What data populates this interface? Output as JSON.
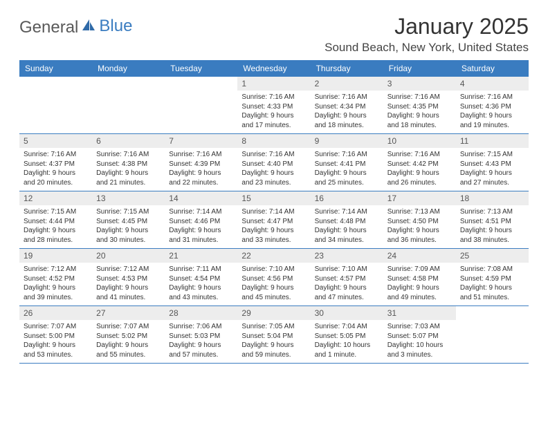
{
  "colors": {
    "header_bg": "#3a7cc0",
    "header_text": "#ffffff",
    "daynum_bg": "#ededed",
    "border": "#3a7cc0",
    "page_bg": "#ffffff",
    "logo_gray": "#595959",
    "logo_blue": "#3a7cc0"
  },
  "brand": {
    "part1": "General",
    "part2": "Blue"
  },
  "title": "January 2025",
  "location": "Sound Beach, New York, United States",
  "weekdays": [
    "Sunday",
    "Monday",
    "Tuesday",
    "Wednesday",
    "Thursday",
    "Friday",
    "Saturday"
  ],
  "weeks": [
    [
      {
        "n": "",
        "sr": "",
        "ss": "",
        "dl": ""
      },
      {
        "n": "",
        "sr": "",
        "ss": "",
        "dl": ""
      },
      {
        "n": "",
        "sr": "",
        "ss": "",
        "dl": ""
      },
      {
        "n": "1",
        "sr": "Sunrise: 7:16 AM",
        "ss": "Sunset: 4:33 PM",
        "dl": "Daylight: 9 hours and 17 minutes."
      },
      {
        "n": "2",
        "sr": "Sunrise: 7:16 AM",
        "ss": "Sunset: 4:34 PM",
        "dl": "Daylight: 9 hours and 18 minutes."
      },
      {
        "n": "3",
        "sr": "Sunrise: 7:16 AM",
        "ss": "Sunset: 4:35 PM",
        "dl": "Daylight: 9 hours and 18 minutes."
      },
      {
        "n": "4",
        "sr": "Sunrise: 7:16 AM",
        "ss": "Sunset: 4:36 PM",
        "dl": "Daylight: 9 hours and 19 minutes."
      }
    ],
    [
      {
        "n": "5",
        "sr": "Sunrise: 7:16 AM",
        "ss": "Sunset: 4:37 PM",
        "dl": "Daylight: 9 hours and 20 minutes."
      },
      {
        "n": "6",
        "sr": "Sunrise: 7:16 AM",
        "ss": "Sunset: 4:38 PM",
        "dl": "Daylight: 9 hours and 21 minutes."
      },
      {
        "n": "7",
        "sr": "Sunrise: 7:16 AM",
        "ss": "Sunset: 4:39 PM",
        "dl": "Daylight: 9 hours and 22 minutes."
      },
      {
        "n": "8",
        "sr": "Sunrise: 7:16 AM",
        "ss": "Sunset: 4:40 PM",
        "dl": "Daylight: 9 hours and 23 minutes."
      },
      {
        "n": "9",
        "sr": "Sunrise: 7:16 AM",
        "ss": "Sunset: 4:41 PM",
        "dl": "Daylight: 9 hours and 25 minutes."
      },
      {
        "n": "10",
        "sr": "Sunrise: 7:16 AM",
        "ss": "Sunset: 4:42 PM",
        "dl": "Daylight: 9 hours and 26 minutes."
      },
      {
        "n": "11",
        "sr": "Sunrise: 7:15 AM",
        "ss": "Sunset: 4:43 PM",
        "dl": "Daylight: 9 hours and 27 minutes."
      }
    ],
    [
      {
        "n": "12",
        "sr": "Sunrise: 7:15 AM",
        "ss": "Sunset: 4:44 PM",
        "dl": "Daylight: 9 hours and 28 minutes."
      },
      {
        "n": "13",
        "sr": "Sunrise: 7:15 AM",
        "ss": "Sunset: 4:45 PM",
        "dl": "Daylight: 9 hours and 30 minutes."
      },
      {
        "n": "14",
        "sr": "Sunrise: 7:14 AM",
        "ss": "Sunset: 4:46 PM",
        "dl": "Daylight: 9 hours and 31 minutes."
      },
      {
        "n": "15",
        "sr": "Sunrise: 7:14 AM",
        "ss": "Sunset: 4:47 PM",
        "dl": "Daylight: 9 hours and 33 minutes."
      },
      {
        "n": "16",
        "sr": "Sunrise: 7:14 AM",
        "ss": "Sunset: 4:48 PM",
        "dl": "Daylight: 9 hours and 34 minutes."
      },
      {
        "n": "17",
        "sr": "Sunrise: 7:13 AM",
        "ss": "Sunset: 4:50 PM",
        "dl": "Daylight: 9 hours and 36 minutes."
      },
      {
        "n": "18",
        "sr": "Sunrise: 7:13 AM",
        "ss": "Sunset: 4:51 PM",
        "dl": "Daylight: 9 hours and 38 minutes."
      }
    ],
    [
      {
        "n": "19",
        "sr": "Sunrise: 7:12 AM",
        "ss": "Sunset: 4:52 PM",
        "dl": "Daylight: 9 hours and 39 minutes."
      },
      {
        "n": "20",
        "sr": "Sunrise: 7:12 AM",
        "ss": "Sunset: 4:53 PM",
        "dl": "Daylight: 9 hours and 41 minutes."
      },
      {
        "n": "21",
        "sr": "Sunrise: 7:11 AM",
        "ss": "Sunset: 4:54 PM",
        "dl": "Daylight: 9 hours and 43 minutes."
      },
      {
        "n": "22",
        "sr": "Sunrise: 7:10 AM",
        "ss": "Sunset: 4:56 PM",
        "dl": "Daylight: 9 hours and 45 minutes."
      },
      {
        "n": "23",
        "sr": "Sunrise: 7:10 AM",
        "ss": "Sunset: 4:57 PM",
        "dl": "Daylight: 9 hours and 47 minutes."
      },
      {
        "n": "24",
        "sr": "Sunrise: 7:09 AM",
        "ss": "Sunset: 4:58 PM",
        "dl": "Daylight: 9 hours and 49 minutes."
      },
      {
        "n": "25",
        "sr": "Sunrise: 7:08 AM",
        "ss": "Sunset: 4:59 PM",
        "dl": "Daylight: 9 hours and 51 minutes."
      }
    ],
    [
      {
        "n": "26",
        "sr": "Sunrise: 7:07 AM",
        "ss": "Sunset: 5:00 PM",
        "dl": "Daylight: 9 hours and 53 minutes."
      },
      {
        "n": "27",
        "sr": "Sunrise: 7:07 AM",
        "ss": "Sunset: 5:02 PM",
        "dl": "Daylight: 9 hours and 55 minutes."
      },
      {
        "n": "28",
        "sr": "Sunrise: 7:06 AM",
        "ss": "Sunset: 5:03 PM",
        "dl": "Daylight: 9 hours and 57 minutes."
      },
      {
        "n": "29",
        "sr": "Sunrise: 7:05 AM",
        "ss": "Sunset: 5:04 PM",
        "dl": "Daylight: 9 hours and 59 minutes."
      },
      {
        "n": "30",
        "sr": "Sunrise: 7:04 AM",
        "ss": "Sunset: 5:05 PM",
        "dl": "Daylight: 10 hours and 1 minute."
      },
      {
        "n": "31",
        "sr": "Sunrise: 7:03 AM",
        "ss": "Sunset: 5:07 PM",
        "dl": "Daylight: 10 hours and 3 minutes."
      },
      {
        "n": "",
        "sr": "",
        "ss": "",
        "dl": ""
      }
    ]
  ]
}
